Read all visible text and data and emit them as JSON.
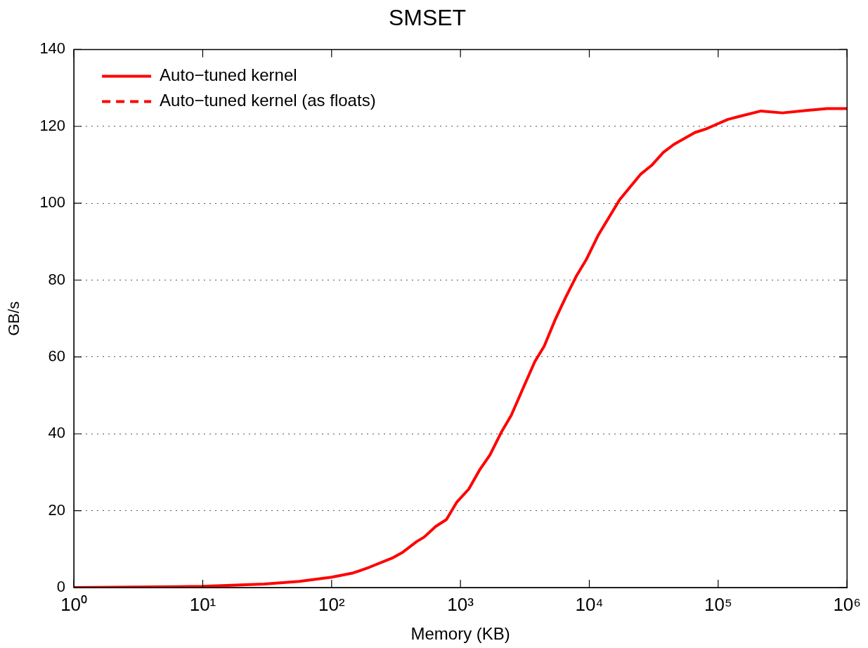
{
  "chart_data": {
    "type": "line",
    "title": "SMSET",
    "xlabel": "Memory (KB)",
    "ylabel": "GB/s",
    "log": "x",
    "grid": "y",
    "legend": "top left",
    "marker": "none",
    "xlim": [
      1,
      1000000
    ],
    "xticks": [
      {
        "value": 1,
        "label": "10⁰"
      },
      {
        "value": 10,
        "label": "10¹"
      },
      {
        "value": 100,
        "label": "10²"
      },
      {
        "value": 1000,
        "label": "10³"
      },
      {
        "value": 10000,
        "label": "10⁴"
      },
      {
        "value": 100000,
        "label": "10⁵"
      },
      {
        "value": 1000000,
        "label": "10⁶"
      }
    ],
    "ylim": [
      0,
      140
    ],
    "yticks": [
      0,
      20,
      40,
      60,
      80,
      100,
      120,
      140
    ],
    "x": [
      1,
      10,
      30,
      56,
      100,
      147,
      197,
      301,
      357,
      459,
      521,
      643,
      778,
      940,
      1159,
      1402,
      1693,
      2090,
      2477,
      3055,
      3776,
      4466,
      5400,
      6530,
      7890,
      9530,
      11780,
      17180,
      25120,
      30340,
      37500,
      45290,
      66070,
      79980,
      119000,
      147000,
      215000,
      315000,
      479000,
      700000,
      1000000
    ],
    "series": [
      {
        "name": "Auto−tuned kernel",
        "color": "#ff0000",
        "line_style": "solid",
        "values": [
          0,
          0.3,
          0.9,
          1.6,
          2.7,
          3.8,
          5.3,
          7.8,
          9.2,
          12,
          13.1,
          15.9,
          17.7,
          22.3,
          25.6,
          30.5,
          34.5,
          40.6,
          44.8,
          51.8,
          58.8,
          62.8,
          69.5,
          75.4,
          80.9,
          85.5,
          91.8,
          100.9,
          107.6,
          109.8,
          113.2,
          115.3,
          118.4,
          119.3,
          121.8,
          122.6,
          124,
          123.5,
          124.1,
          124.6,
          124.6
        ]
      },
      {
        "name": "Auto−tuned kernel (as floats)",
        "color": "#ff0000",
        "line_style": "dashed",
        "values": [
          null,
          null,
          null,
          null,
          null,
          null,
          null,
          null,
          null,
          null,
          null,
          null,
          null,
          null,
          null,
          null,
          null,
          null,
          null,
          null,
          null,
          null,
          null,
          null,
          null,
          null,
          null,
          null,
          null,
          null,
          null,
          null,
          null,
          null,
          null,
          null,
          null,
          null,
          null,
          null,
          null
        ]
      }
    ]
  }
}
